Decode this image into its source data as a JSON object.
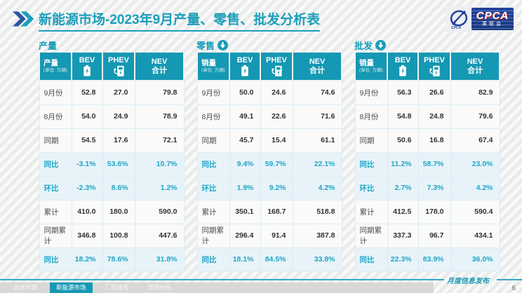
{
  "header": {
    "title_strong": "新能源市场",
    "title_rest": "-2023年9月产量、零售、批发分析表",
    "logo": {
      "cpca": "CPCA",
      "cn": "乘联会"
    }
  },
  "colors": {
    "header_teal": "#1598b3",
    "percent_blue": "#1fa6c8",
    "title_teal": "#1a9fbb",
    "logo_blue": "#21449c",
    "active_tab": "#1598b3"
  },
  "tables": [
    {
      "section": "产量",
      "has_down_icon": false,
      "corner": {
        "title": "产量",
        "unit": "(单位: 万辆)"
      },
      "columns": [
        "BEV",
        "PHEV",
        "NEV",
        "合计"
      ],
      "rows": [
        {
          "label": "9月份",
          "kind": "normal",
          "values": [
            "52.8",
            "27.0",
            "79.8"
          ]
        },
        {
          "label": "8月份",
          "kind": "normal",
          "values": [
            "54.0",
            "24.9",
            "78.9"
          ]
        },
        {
          "label": "同期",
          "kind": "normal",
          "values": [
            "54.5",
            "17.6",
            "72.1"
          ]
        },
        {
          "label": "同比",
          "kind": "pct",
          "values": [
            "-3.1%",
            "53.6%",
            "10.7%"
          ]
        },
        {
          "label": "环比",
          "kind": "pct",
          "values": [
            "-2.3%",
            "8.6%",
            "1.2%"
          ]
        },
        {
          "label": "累计",
          "kind": "normal",
          "values": [
            "410.0",
            "180.0",
            "590.0"
          ]
        },
        {
          "label": "同期累计",
          "kind": "normal",
          "values": [
            "346.8",
            "100.8",
            "447.6"
          ]
        },
        {
          "label": "同比",
          "kind": "pct",
          "values": [
            "18.2%",
            "78.6%",
            "31.8%"
          ]
        }
      ]
    },
    {
      "section": "零售",
      "has_down_icon": true,
      "corner": {
        "title": "销量",
        "unit": "(单位: 万辆)"
      },
      "columns": [
        "BEV",
        "PHEV",
        "NEV",
        "合计"
      ],
      "rows": [
        {
          "label": "9月份",
          "kind": "normal",
          "values": [
            "50.0",
            "24.6",
            "74.6"
          ]
        },
        {
          "label": "8月份",
          "kind": "normal",
          "values": [
            "49.1",
            "22.6",
            "71.6"
          ]
        },
        {
          "label": "同期",
          "kind": "normal",
          "values": [
            "45.7",
            "15.4",
            "61.1"
          ]
        },
        {
          "label": "同比",
          "kind": "pct",
          "values": [
            "9.4%",
            "59.7%",
            "22.1%"
          ]
        },
        {
          "label": "环比",
          "kind": "pct",
          "values": [
            "1.9%",
            "9.2%",
            "4.2%"
          ]
        },
        {
          "label": "累计",
          "kind": "normal",
          "values": [
            "350.1",
            "168.7",
            "518.8"
          ]
        },
        {
          "label": "同期累计",
          "kind": "normal",
          "values": [
            "296.4",
            "91.4",
            "387.8"
          ]
        },
        {
          "label": "同比",
          "kind": "pct",
          "values": [
            "18.1%",
            "84.5%",
            "33.8%"
          ]
        }
      ]
    },
    {
      "section": "批发",
      "has_down_icon": true,
      "corner": {
        "title": "销量",
        "unit": "(单位: 万辆)"
      },
      "columns": [
        "BEV",
        "PHEV",
        "NEV",
        "合计"
      ],
      "rows": [
        {
          "label": "9月份",
          "kind": "normal",
          "values": [
            "56.3",
            "26.6",
            "82.9"
          ]
        },
        {
          "label": "8月份",
          "kind": "normal",
          "values": [
            "54.8",
            "24.8",
            "79.6"
          ]
        },
        {
          "label": "同期",
          "kind": "normal",
          "values": [
            "50.6",
            "16.8",
            "67.4"
          ]
        },
        {
          "label": "同比",
          "kind": "pct",
          "values": [
            "11.2%",
            "58.7%",
            "23.0%"
          ]
        },
        {
          "label": "环比",
          "kind": "pct",
          "values": [
            "2.7%",
            "7.3%",
            "4.2%"
          ]
        },
        {
          "label": "累计",
          "kind": "normal",
          "values": [
            "412.5",
            "178.0",
            "590.4"
          ]
        },
        {
          "label": "同期累计",
          "kind": "normal",
          "values": [
            "337.3",
            "96.7",
            "434.1"
          ]
        },
        {
          "label": "同比",
          "kind": "pct",
          "values": [
            "22.3%",
            "83.9%",
            "36.0%"
          ]
        }
      ]
    }
  ],
  "watermark": {
    "text_en": "CPCA",
    "text_cn": "乘联会"
  },
  "footer": {
    "tabs": [
      {
        "label": "总体市场",
        "active": false
      },
      {
        "label": "新能源市场",
        "active": true
      },
      {
        "label": "厂商排名",
        "active": false
      },
      {
        "label": "市场分析",
        "active": false
      }
    ],
    "release_note": "月度信息发布",
    "page_number": "6"
  }
}
